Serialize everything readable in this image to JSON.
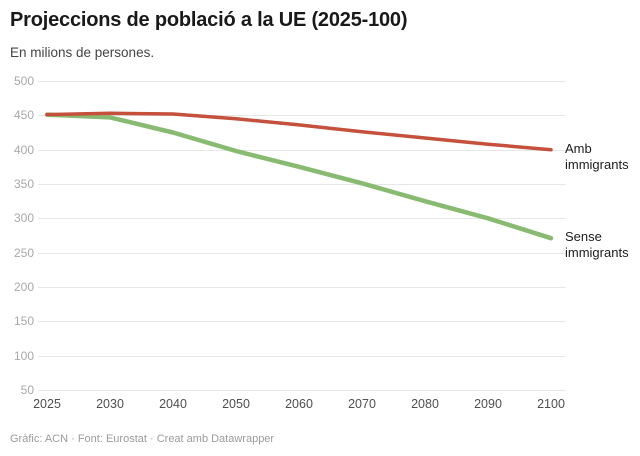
{
  "header": {
    "title": "Projeccions de població a la UE (2025-100)",
    "subtitle": "En milions de persones."
  },
  "footer": {
    "credit": "Gràfic: ACN · Font: Eurostat · Creat amb Datawrapper"
  },
  "chart_data": {
    "type": "line",
    "title": "Projeccions de població a la UE (2025-100)",
    "subtitle_units": "En milions de persones.",
    "x_tick_labels": [
      "2025",
      "2030",
      "2040",
      "2050",
      "2060",
      "2070",
      "2080",
      "2090",
      "2100"
    ],
    "y_ticks": [
      500,
      450,
      400,
      350,
      300,
      250,
      200,
      150,
      100,
      50
    ],
    "ylim": [
      50,
      500
    ],
    "grid": true,
    "legend_position": "line-end-labels-right",
    "series": [
      {
        "name": "Amb immigrants",
        "color": "#c5503c",
        "stroke_width": 3.5,
        "values": [
          451,
          453,
          452,
          445,
          436,
          426,
          417,
          408,
          400
        ]
      },
      {
        "name": "Sense immigrants",
        "color": "#89ba72",
        "stroke_width": 4.5,
        "values": [
          451,
          447,
          425,
          398,
          375,
          351,
          325,
          300,
          271
        ]
      }
    ],
    "gridline_color": "#e6e6e6"
  }
}
